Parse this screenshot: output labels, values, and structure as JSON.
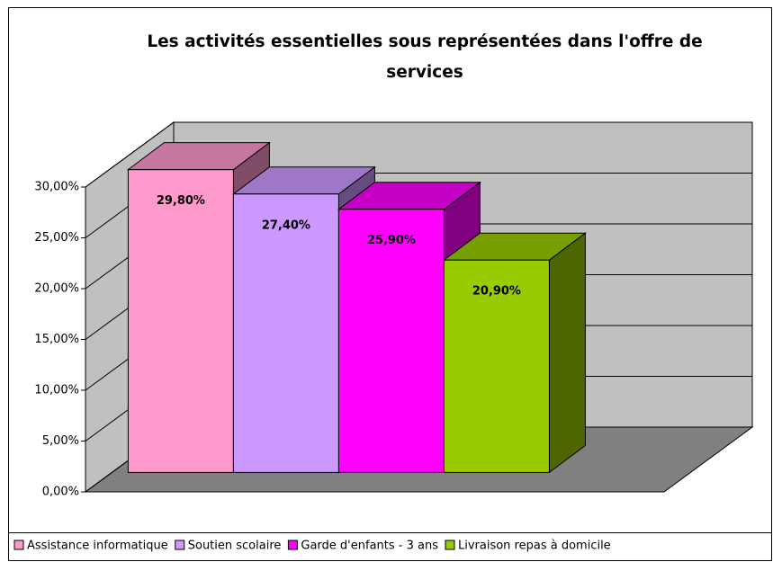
{
  "chart_data": {
    "type": "bar3d",
    "title": "Les activités essentielles sous représentées dans l'offre de services",
    "categories": [
      "Assistance informatique",
      "Soutien scolaire",
      "Garde d'enfants - 3 ans",
      "Livraison repas à domicile"
    ],
    "values": [
      29.8,
      27.4,
      25.9,
      20.9
    ],
    "value_labels": [
      "29,80%",
      "27,40%",
      "25,90%",
      "20,90%"
    ],
    "colors": [
      "#ff99cc",
      "#cc99ff",
      "#ff00ff",
      "#99cc00"
    ],
    "ylim": [
      0,
      30
    ],
    "yticks": [
      {
        "value": 0,
        "label": "0,00%"
      },
      {
        "value": 5,
        "label": "5,00%"
      },
      {
        "value": 10,
        "label": "10,00%"
      },
      {
        "value": 15,
        "label": "15,00%"
      },
      {
        "value": 20,
        "label": "20,00%"
      },
      {
        "value": 25,
        "label": "25,00%"
      },
      {
        "value": 30,
        "label": "30,00%"
      }
    ],
    "grid": true,
    "legend": "bottom"
  }
}
